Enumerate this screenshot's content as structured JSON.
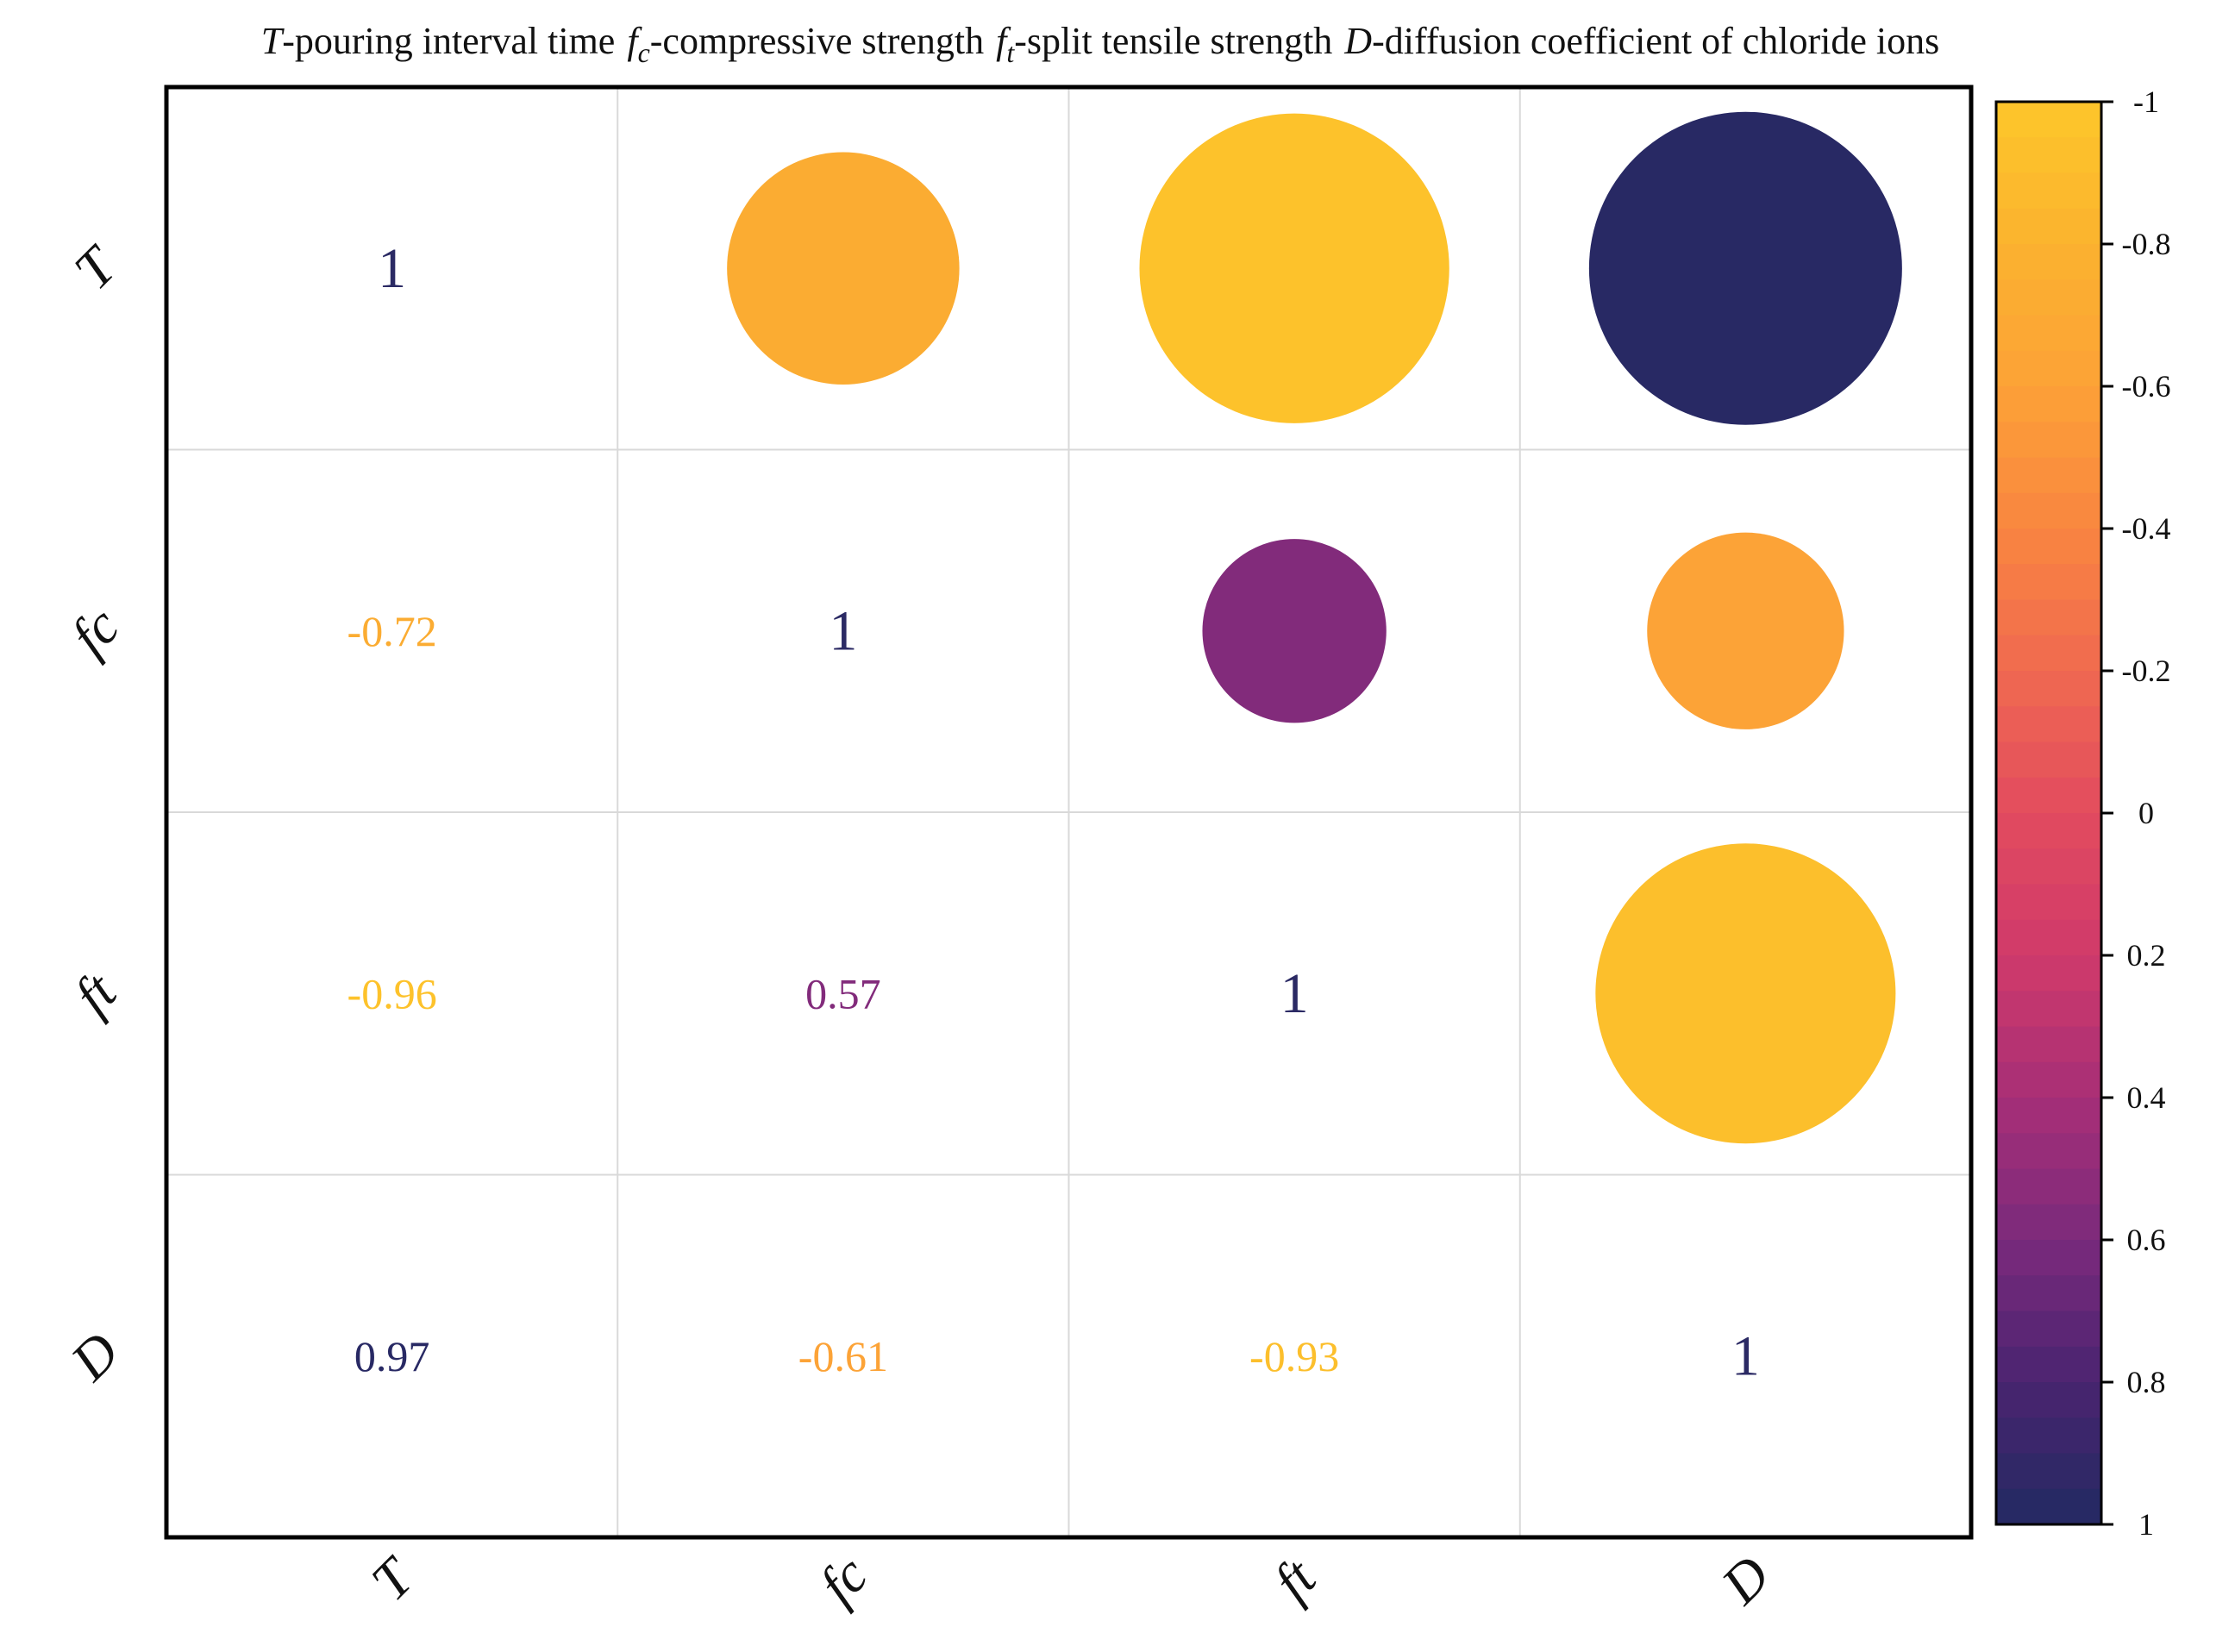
{
  "chart_data": {
    "type": "heatmap",
    "title_legend": [
      {
        "symbol": "T",
        "sub": "",
        "text": "-pouring interval time"
      },
      {
        "symbol": "f",
        "sub": "c",
        "text": "-compressive strength"
      },
      {
        "symbol": "f",
        "sub": "t",
        "text": "-split tensile strength"
      },
      {
        "symbol": "D",
        "sub": "",
        "text": "-diffusion coefficient of chloride ions"
      }
    ],
    "variables": [
      "T",
      "fc",
      "ft",
      "D"
    ],
    "matrix": [
      [
        1,
        -0.72,
        -0.96,
        0.97
      ],
      [
        -0.72,
        1,
        0.57,
        -0.61
      ],
      [
        -0.96,
        0.57,
        1,
        -0.93
      ],
      [
        0.97,
        -0.61,
        -0.93,
        1
      ]
    ],
    "lower_triangle": "numbers",
    "upper_triangle": "circles",
    "value_labels": {
      "1-0": "-0.72",
      "2-0": "-0.96",
      "2-1": "0.57",
      "3-0": "0.97",
      "3-1": "-0.61",
      "3-2": "-0.93",
      "0-0": "1",
      "1-1": "1",
      "2-2": "1",
      "3-3": "1"
    },
    "colorbar": {
      "range": [
        -1,
        1
      ],
      "reversed": true,
      "ticks": [
        "-1",
        "-0.8",
        "-0.6",
        "-0.4",
        "-0.2",
        "0",
        "0.2",
        "0.4",
        "0.6",
        "0.8",
        "1"
      ],
      "tick_values": [
        -1,
        -0.8,
        -0.6,
        -0.4,
        -0.2,
        0,
        0.2,
        0.4,
        0.6,
        0.8,
        1
      ]
    },
    "colorscale": [
      {
        "value": -1,
        "color": "#fdc62a"
      },
      {
        "value": -0.8,
        "color": "#fbb22f"
      },
      {
        "value": -0.6,
        "color": "#fca237"
      },
      {
        "value": -0.4,
        "color": "#f98540"
      },
      {
        "value": -0.2,
        "color": "#f06a50"
      },
      {
        "value": 0,
        "color": "#e24b5f"
      },
      {
        "value": 0.2,
        "color": "#d03a6a"
      },
      {
        "value": 0.4,
        "color": "#a72f77"
      },
      {
        "value": 0.6,
        "color": "#7b2a7c"
      },
      {
        "value": 0.8,
        "color": "#4a2470"
      },
      {
        "value": 1,
        "color": "#222a62"
      }
    ],
    "grid": true
  },
  "colors": {
    "frame": "#000000",
    "grid": "#d9d9d9",
    "diag_text": "#2b2a64"
  }
}
